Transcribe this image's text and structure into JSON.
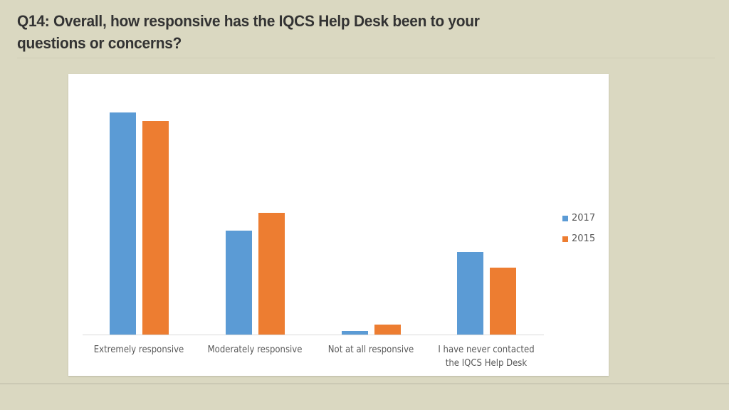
{
  "slide": {
    "title": "Q14: Overall, how responsive has the IQCS Help Desk been to your questions or concerns?",
    "title_line1": "Q14: Overall, how responsive has the IQCS Help Desk been to your",
    "title_line2": "questions or concerns?"
  },
  "colors": {
    "2017": "#5b9bd5",
    "2015": "#ed7d31",
    "background": "#dad8c1"
  },
  "chart_data": {
    "type": "bar",
    "title": "",
    "xlabel": "",
    "ylabel": "",
    "categories": [
      "Extremely responsive",
      "Moderately responsive",
      "Not at all responsive",
      "I have never contacted the IQCS Help Desk"
    ],
    "category_lines": [
      [
        "Extremely responsive"
      ],
      [
        "Moderately responsive"
      ],
      [
        "Not at all responsive"
      ],
      [
        "I have never contacted",
        "the IQCS Help Desk"
      ]
    ],
    "series": [
      {
        "name": "2017",
        "color": "#5b9bd5",
        "values": [
          312,
          146,
          5,
          116
        ]
      },
      {
        "name": "2015",
        "color": "#ed7d31",
        "values": [
          300,
          171,
          14,
          94
        ]
      }
    ],
    "units": "relative bar height (no value axis shown)",
    "ylim": [
      0,
      330
    ],
    "grid": false,
    "legend_position": "right"
  }
}
